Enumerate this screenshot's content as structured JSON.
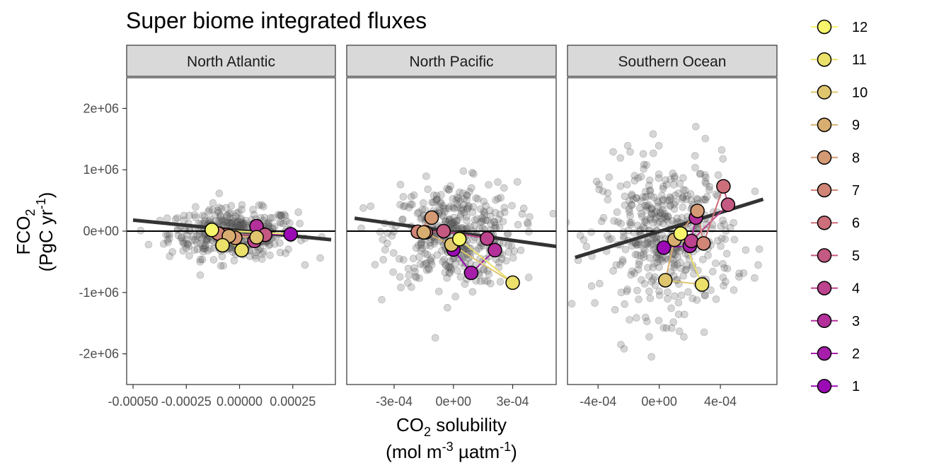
{
  "chart_data": {
    "type": "scatter",
    "title": "Super biome integrated fluxes",
    "xlabel": {
      "main": "CO",
      "sub": "2",
      "rest": " solubility",
      "unit_open": "(mol m",
      "unit_sup1": "-3",
      "unit_mid": " µatm",
      "unit_sup2": "-1",
      "unit_close": ")"
    },
    "ylabel": {
      "line1_main": "FCO",
      "line1_sub": "2",
      "line2_open": "(PgC yr",
      "line2_sup": "-1",
      "line2_close": ")"
    },
    "ylim": [
      -2500000,
      2500000
    ],
    "y_ticks": [
      {
        "value": -2000000,
        "label": "-2e+06"
      },
      {
        "value": -1000000,
        "label": "-1e+06"
      },
      {
        "value": 0,
        "label": "0e+00"
      },
      {
        "value": 1000000,
        "label": "1e+06"
      },
      {
        "value": 2000000,
        "label": "2e+06"
      }
    ],
    "legend": {
      "position": "right",
      "entries": [
        {
          "label": "12",
          "color": "#F6F56B"
        },
        {
          "label": "11",
          "color": "#EAE06A"
        },
        {
          "label": "10",
          "color": "#DFC56E"
        },
        {
          "label": "9",
          "color": "#D8AE70"
        },
        {
          "label": "8",
          "color": "#D49A74"
        },
        {
          "label": "7",
          "color": "#D08576"
        },
        {
          "label": "6",
          "color": "#CC6F7A"
        },
        {
          "label": "5",
          "color": "#C45982"
        },
        {
          "label": "4",
          "color": "#BC438D"
        },
        {
          "label": "3",
          "color": "#B3309B"
        },
        {
          "label": "2",
          "color": "#A61EAA"
        },
        {
          "label": "1",
          "color": "#9C0AB6"
        }
      ]
    },
    "panels": [
      {
        "name": "North Atlantic",
        "xlim": [
          -0.00053,
          0.00045
        ],
        "x_ticks": [
          {
            "value": -0.0005,
            "label": "-0.00050"
          },
          {
            "value": -0.00025,
            "label": "-0.00025"
          },
          {
            "value": 0.0,
            "label": "0.00000"
          },
          {
            "value": 0.00025,
            "label": "0.00025"
          }
        ],
        "trend": {
          "x": [
            -0.0005,
            0.00043
          ],
          "y": [
            180000,
            -140000
          ]
        },
        "monthly": [
          {
            "month": 1,
            "x": 0.00024,
            "y": -50000
          },
          {
            "month": 2,
            "x": 0.00011,
            "y": -50000
          },
          {
            "month": 3,
            "x": 8e-05,
            "y": 80000
          },
          {
            "month": 4,
            "x": 7e-05,
            "y": -160000
          },
          {
            "month": 5,
            "x": 0.00012,
            "y": -60000
          },
          {
            "month": 6,
            "x": -6e-05,
            "y": -60000
          },
          {
            "month": 7,
            "x": -0.0001,
            "y": -40000
          },
          {
            "month": 8,
            "x": -2e-05,
            "y": -110000
          },
          {
            "month": 9,
            "x": -5e-05,
            "y": -80000
          },
          {
            "month": 10,
            "x": 8e-05,
            "y": -100000
          },
          {
            "month": 11,
            "x": 1e-05,
            "y": -310000
          },
          {
            "month": 12,
            "x": -0.00013,
            "y": 20000
          }
        ],
        "extra_monthly": [
          {
            "month": 11,
            "x": -8e-05,
            "y": -230000
          }
        ],
        "scatter": {
          "x_center": -3e-05,
          "x_spread": 0.00015,
          "y_center": -40000,
          "y_spread": 200000,
          "count": 420
        }
      },
      {
        "name": "North Pacific",
        "xlim": [
          -0.00054,
          0.00052
        ],
        "x_ticks": [
          {
            "value": -0.0003,
            "label": "-3e-04"
          },
          {
            "value": 0.0,
            "label": "0e+00"
          },
          {
            "value": 0.0003,
            "label": "3e-04"
          }
        ],
        "trend": {
          "x": [
            -0.0005,
            0.00052
          ],
          "y": [
            210000,
            -250000
          ]
        },
        "monthly": [
          {
            "month": 1,
            "x": 0.0,
            "y": -300000
          },
          {
            "month": 2,
            "x": 9e-05,
            "y": -680000
          },
          {
            "month": 3,
            "x": 0.00021,
            "y": -310000
          },
          {
            "month": 4,
            "x": 0.00017,
            "y": -120000
          },
          {
            "month": 5,
            "x": -5e-05,
            "y": 0
          },
          {
            "month": 6,
            "x": -0.00014,
            "y": -20000
          },
          {
            "month": 7,
            "x": -0.00018,
            "y": -10000
          },
          {
            "month": 8,
            "x": -0.00011,
            "y": 220000
          },
          {
            "month": 9,
            "x": -0.00015,
            "y": -20000
          },
          {
            "month": 10,
            "x": -1e-05,
            "y": -220000
          },
          {
            "month": 11,
            "x": 0.0003,
            "y": -840000
          },
          {
            "month": 12,
            "x": 3e-05,
            "y": -130000
          }
        ],
        "scatter": {
          "x_center": 0.0,
          "x_spread": 0.00016,
          "y_center": -50000,
          "y_spread": 420000,
          "count": 420
        }
      },
      {
        "name": "Southern Ocean",
        "xlim": [
          -0.0006,
          0.00077
        ],
        "x_ticks": [
          {
            "value": -0.0004,
            "label": "-4e-04"
          },
          {
            "value": 0.0,
            "label": "0e+00"
          },
          {
            "value": 0.0004,
            "label": "4e-04"
          }
        ],
        "trend": {
          "x": [
            -0.00055,
            0.00068
          ],
          "y": [
            -430000,
            520000
          ]
        },
        "monthly": [
          {
            "month": 1,
            "x": 3e-05,
            "y": -270000
          },
          {
            "month": 2,
            "x": 0.0002,
            "y": -240000
          },
          {
            "month": 3,
            "x": 0.00024,
            "y": 220000
          },
          {
            "month": 4,
            "x": 0.00021,
            "y": -160000
          },
          {
            "month": 5,
            "x": 0.00045,
            "y": 430000
          },
          {
            "month": 6,
            "x": 0.00042,
            "y": 730000
          },
          {
            "month": 7,
            "x": 0.00029,
            "y": -200000
          },
          {
            "month": 8,
            "x": 0.00025,
            "y": 330000
          },
          {
            "month": 9,
            "x": 0.0001,
            "y": -140000
          },
          {
            "month": 10,
            "x": 4e-05,
            "y": -800000
          },
          {
            "month": 11,
            "x": 0.00028,
            "y": -870000
          },
          {
            "month": 12,
            "x": 0.00014,
            "y": -40000
          }
        ],
        "scatter": {
          "x_center": 5e-05,
          "x_spread": 0.00022,
          "y_center": -100000,
          "y_spread": 620000,
          "count": 460
        }
      }
    ]
  }
}
